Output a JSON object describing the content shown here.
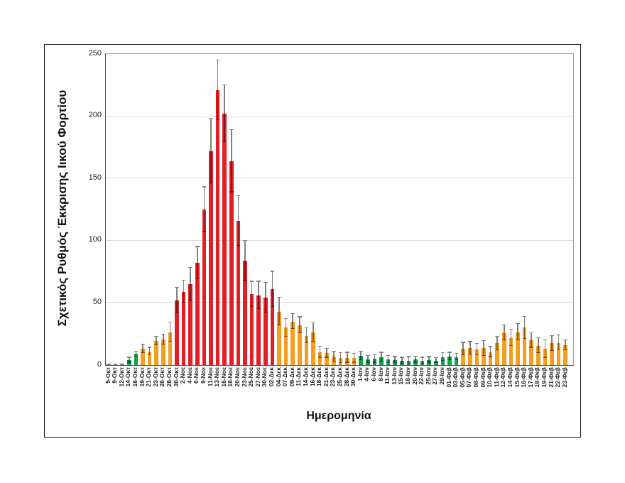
{
  "chart_data": {
    "type": "bar",
    "title": "",
    "xlabel": "Ημερομηνία",
    "ylabel": "Σχετικός Ρυθμός Έκκρισης Ιικού Φορτίου",
    "ylim": [
      0,
      250
    ],
    "yticks": [
      0,
      50,
      100,
      150,
      200,
      250
    ],
    "grid": true,
    "legend": "none",
    "error_bars": true,
    "colors": {
      "red": "#e41e25",
      "orange": "#f49d1f",
      "green": "#12a14b",
      "gray": "#7f7f7f",
      "error": "#808080"
    },
    "bars": [
      {
        "label": "5-Οκτ",
        "value": 1,
        "err": 0,
        "color": "gray"
      },
      {
        "label": "9-Οκτ",
        "value": 1,
        "err": 0,
        "color": "gray"
      },
      {
        "label": "12-Οκτ",
        "value": 1,
        "err": 0,
        "color": "gray"
      },
      {
        "label": "14-Οκτ",
        "value": 4,
        "err": 2,
        "color": "green"
      },
      {
        "label": "16-Οκτ",
        "value": 9,
        "err": 2,
        "color": "green"
      },
      {
        "label": "19-Οκτ",
        "value": 13,
        "err": 3.5,
        "color": "orange"
      },
      {
        "label": "21-Οκτ",
        "value": 11,
        "err": 3,
        "color": "orange"
      },
      {
        "label": "23-Οκτ",
        "value": 19.5,
        "err": 3.5,
        "color": "orange"
      },
      {
        "label": "26-Οκτ",
        "value": 20.5,
        "err": 4,
        "color": "orange"
      },
      {
        "label": "28-Οκτ",
        "value": 26.5,
        "err": 7.5,
        "color": "orange"
      },
      {
        "label": "30-Οκτ",
        "value": 52,
        "err": 10,
        "color": "red"
      },
      {
        "label": "2-Νοε",
        "value": 59,
        "err": 9,
        "color": "red"
      },
      {
        "label": "4-Νοε",
        "value": 65,
        "err": 13,
        "color": "red"
      },
      {
        "label": "6-Νοε",
        "value": 82,
        "err": 13,
        "color": "red"
      },
      {
        "label": "9-Νοε",
        "value": 125,
        "err": 18,
        "color": "red"
      },
      {
        "label": "11-Νοε",
        "value": 172,
        "err": 26,
        "color": "red"
      },
      {
        "label": "13-Νοε",
        "value": 221,
        "err": 24,
        "color": "red"
      },
      {
        "label": "16-Νοε",
        "value": 202,
        "err": 23,
        "color": "red"
      },
      {
        "label": "18-Νοε",
        "value": 164,
        "err": 25,
        "color": "red"
      },
      {
        "label": "20-Νοε",
        "value": 116,
        "err": 20,
        "color": "red"
      },
      {
        "label": "23-Νοε",
        "value": 84,
        "err": 16,
        "color": "red"
      },
      {
        "label": "25-Νοε",
        "value": 57,
        "err": 10,
        "color": "red"
      },
      {
        "label": "27-Νοε",
        "value": 56,
        "err": 11,
        "color": "red"
      },
      {
        "label": "30-Νοε",
        "value": 54,
        "err": 12,
        "color": "red"
      },
      {
        "label": "02-Δεκ",
        "value": 61,
        "err": 14,
        "color": "red"
      },
      {
        "label": "04-Δεκ",
        "value": 43,
        "err": 11,
        "color": "orange"
      },
      {
        "label": "07-Δεκ",
        "value": 30,
        "err": 7,
        "color": "orange"
      },
      {
        "label": "09-Δεκ",
        "value": 35,
        "err": 6,
        "color": "orange"
      },
      {
        "label": "11-Δεκ",
        "value": 32,
        "err": 6.5,
        "color": "orange"
      },
      {
        "label": "14-Δεκ",
        "value": 23.5,
        "err": 6,
        "color": "orange"
      },
      {
        "label": "16-Δεκ",
        "value": 26.5,
        "err": 7.5,
        "color": "orange"
      },
      {
        "label": "18-Δεκ",
        "value": 10.5,
        "err": 4.5,
        "color": "orange"
      },
      {
        "label": "21-Δεκ",
        "value": 9.5,
        "err": 3.5,
        "color": "orange"
      },
      {
        "label": "23-Δεκ",
        "value": 7,
        "err": 4,
        "color": "orange"
      },
      {
        "label": "25-Δεκ",
        "value": 5.5,
        "err": 4,
        "color": "orange"
      },
      {
        "label": "28-Δεκ",
        "value": 6,
        "err": 4,
        "color": "orange"
      },
      {
        "label": "30-Δεκ",
        "value": 5.5,
        "err": 3.5,
        "color": "orange"
      },
      {
        "label": "1-Ιαν",
        "value": 7.5,
        "err": 3.5,
        "color": "green"
      },
      {
        "label": "4-Ιαν",
        "value": 4.5,
        "err": 3,
        "color": "green"
      },
      {
        "label": "6-Ιαν",
        "value": 5,
        "err": 3,
        "color": "green"
      },
      {
        "label": "8-Ιαν",
        "value": 6.5,
        "err": 3.5,
        "color": "green"
      },
      {
        "label": "11-Ιαν",
        "value": 4.5,
        "err": 3,
        "color": "green"
      },
      {
        "label": "13-Ιαν",
        "value": 4,
        "err": 2.5,
        "color": "green"
      },
      {
        "label": "15-Ιαν",
        "value": 3.5,
        "err": 2.5,
        "color": "green"
      },
      {
        "label": "18-Ιαν",
        "value": 3.5,
        "err": 3,
        "color": "green"
      },
      {
        "label": "20-Ιαν",
        "value": 4.5,
        "err": 2.5,
        "color": "green"
      },
      {
        "label": "22-Ιαν",
        "value": 3.5,
        "err": 2.5,
        "color": "green"
      },
      {
        "label": "25-Ιαν",
        "value": 4,
        "err": 2.5,
        "color": "green"
      },
      {
        "label": "27-Ιαν",
        "value": 3.5,
        "err": 2,
        "color": "green"
      },
      {
        "label": "29-Ιαν",
        "value": 6.5,
        "err": 3,
        "color": "green"
      },
      {
        "label": "01-Φεβ",
        "value": 7,
        "err": 3,
        "color": "green"
      },
      {
        "label": "03-Φεβ",
        "value": 6.5,
        "err": 2.5,
        "color": "green"
      },
      {
        "label": "05-Φεβ",
        "value": 13,
        "err": 5,
        "color": "orange"
      },
      {
        "label": "07-Φεβ",
        "value": 13.5,
        "err": 5,
        "color": "orange"
      },
      {
        "label": "08-Φεβ",
        "value": 12.5,
        "err": 4.5,
        "color": "orange"
      },
      {
        "label": "09-Φεβ",
        "value": 13.5,
        "err": 6,
        "color": "orange"
      },
      {
        "label": "10-Φεβ",
        "value": 10.5,
        "err": 4,
        "color": "orange"
      },
      {
        "label": "11-Φεβ",
        "value": 17.5,
        "err": 5.5,
        "color": "orange"
      },
      {
        "label": "12-Φεβ",
        "value": 26,
        "err": 6,
        "color": "orange"
      },
      {
        "label": "14-Φεβ",
        "value": 22,
        "err": 6.5,
        "color": "orange"
      },
      {
        "label": "15-Φεβ",
        "value": 26.5,
        "err": 6.5,
        "color": "orange"
      },
      {
        "label": "16-Φεβ",
        "value": 30,
        "err": 9,
        "color": "orange"
      },
      {
        "label": "17-Φεβ",
        "value": 20,
        "err": 6,
        "color": "orange"
      },
      {
        "label": "18-Φεβ",
        "value": 15.5,
        "err": 6,
        "color": "orange"
      },
      {
        "label": "19-Φεβ",
        "value": 13,
        "err": 7,
        "color": "orange"
      },
      {
        "label": "21-Φεβ",
        "value": 17.5,
        "err": 6,
        "color": "orange"
      },
      {
        "label": "22-Φεβ",
        "value": 18,
        "err": 6,
        "color": "orange"
      },
      {
        "label": "23-Φεβ",
        "value": 16,
        "err": 4,
        "color": "orange"
      }
    ]
  }
}
